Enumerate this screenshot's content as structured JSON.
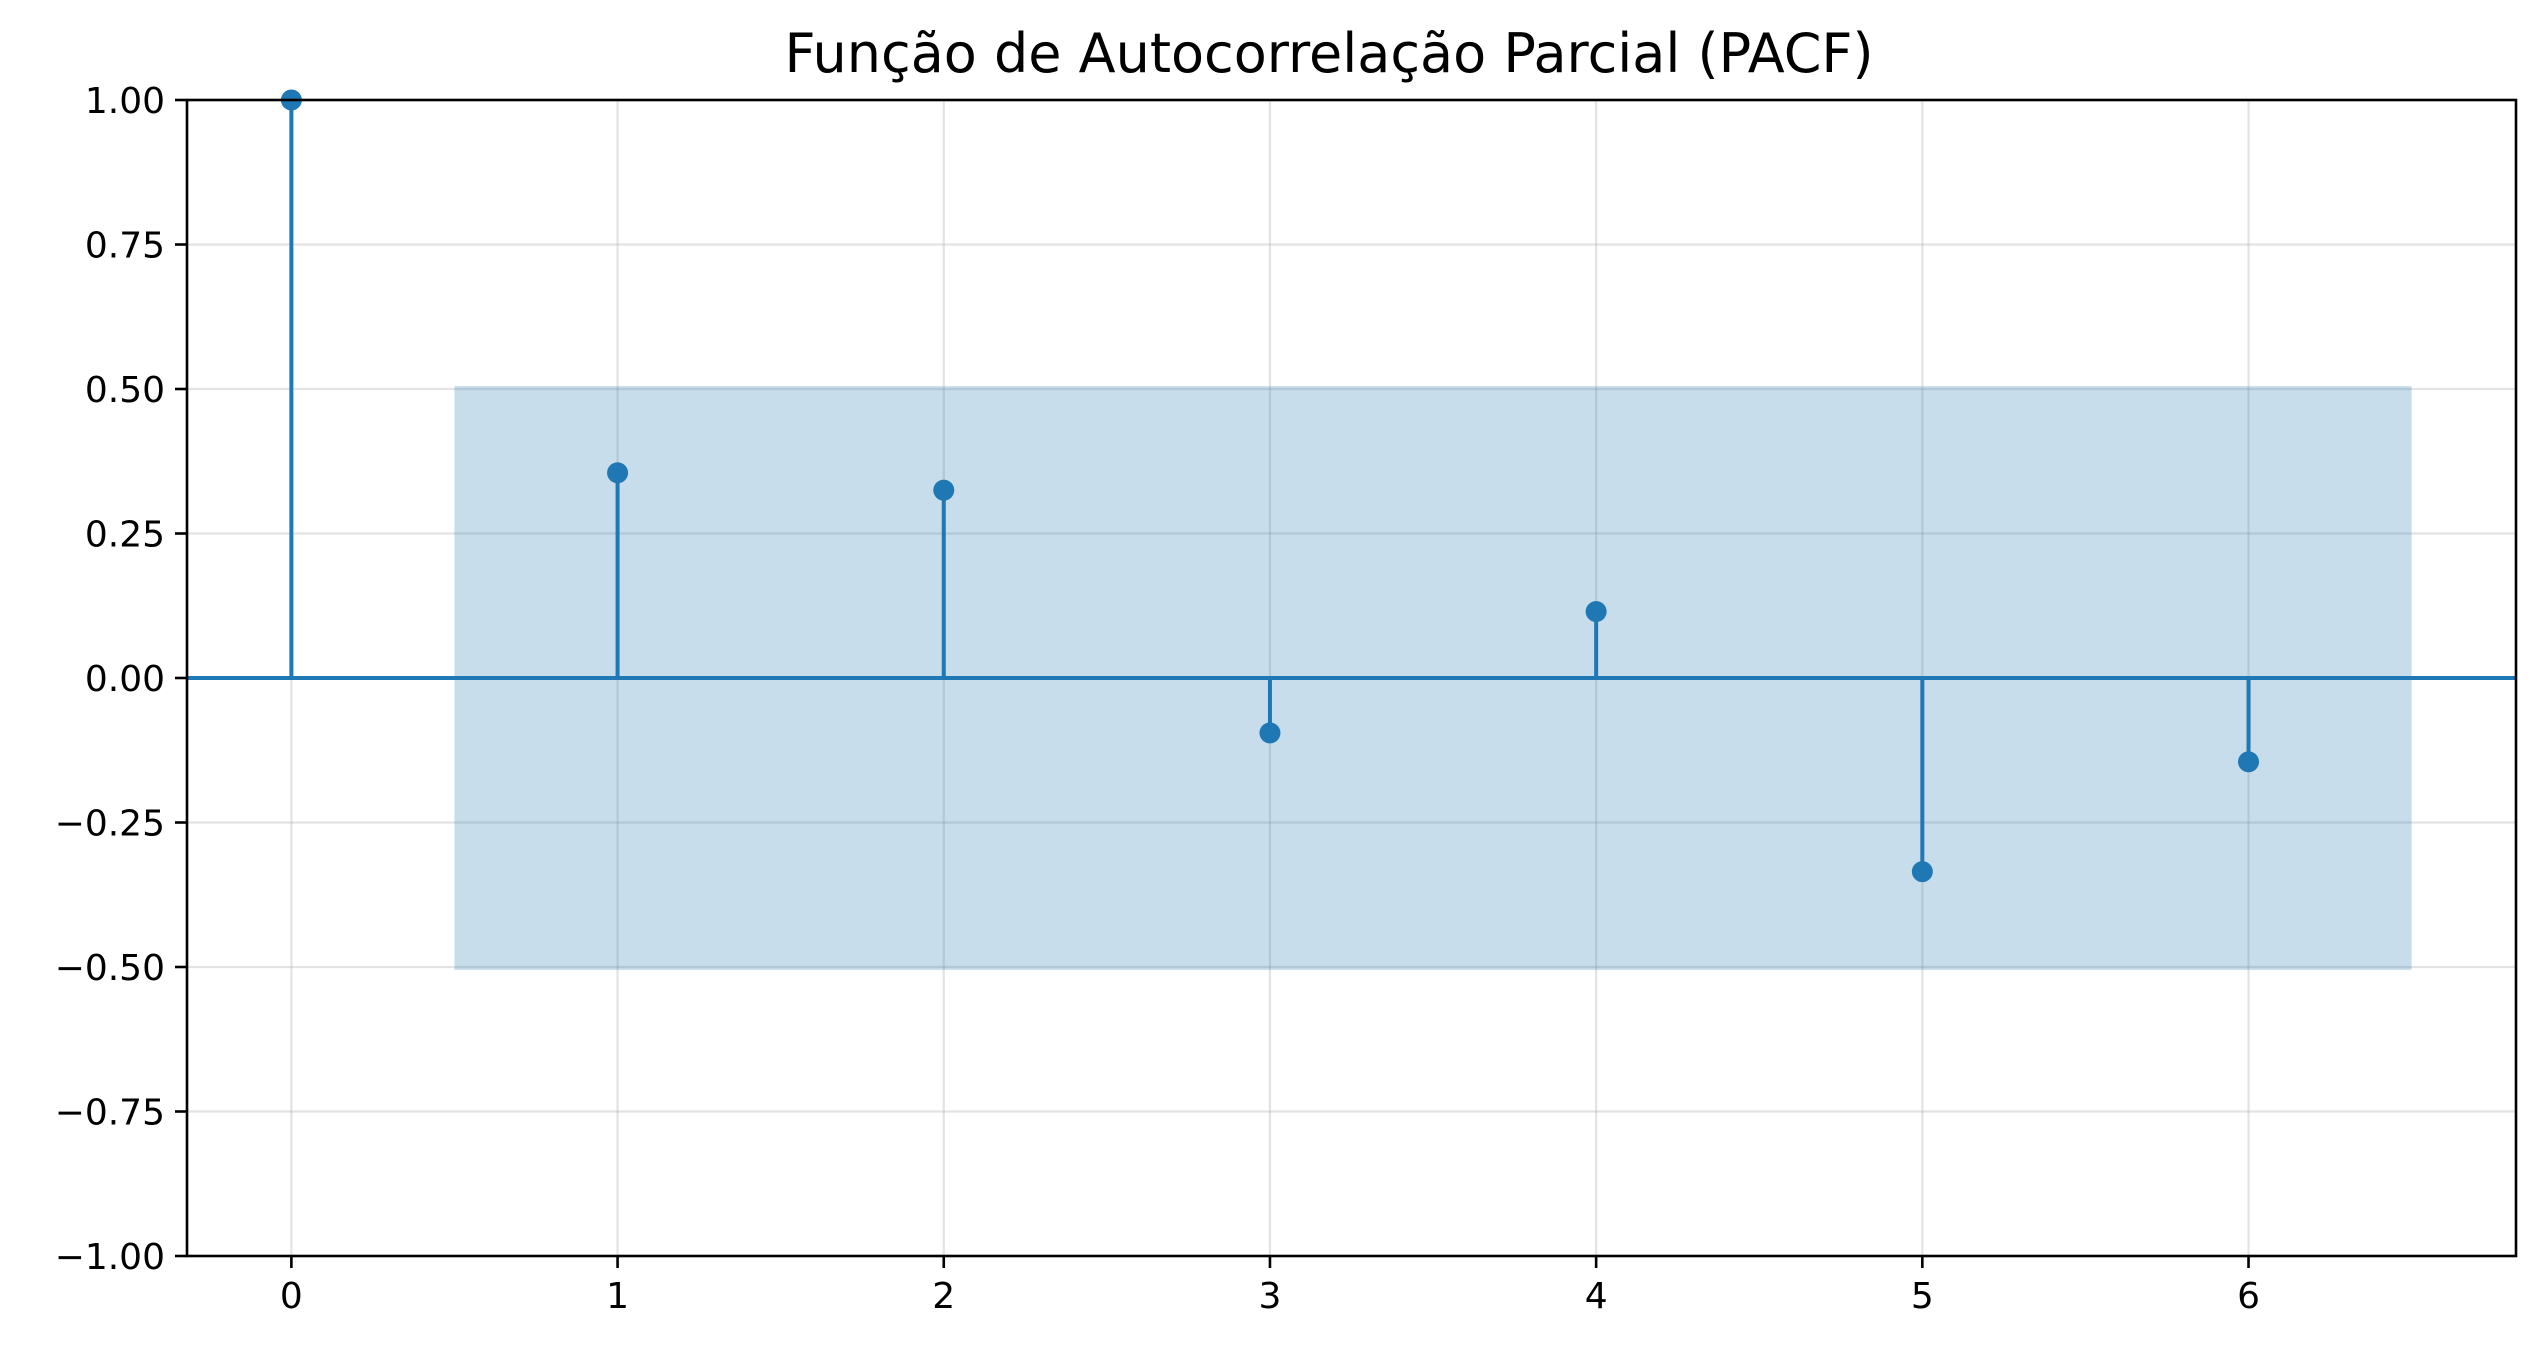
{
  "chart_data": {
    "type": "stem",
    "title": "Função de Autocorrelação Parcial (PACF)",
    "xlabel": "",
    "ylabel": "",
    "x": [
      0,
      1,
      2,
      3,
      4,
      5,
      6
    ],
    "values": [
      1.0,
      0.355,
      0.325,
      -0.095,
      0.115,
      -0.335,
      -0.145
    ],
    "confidence_band": {
      "x_range": [
        0.5,
        6.5
      ],
      "upper": 0.505,
      "lower": -0.505
    },
    "xlim": [
      -0.32,
      6.82
    ],
    "ylim": [
      -1.0,
      1.0
    ],
    "x_ticks": [
      0,
      1,
      2,
      3,
      4,
      5,
      6
    ],
    "x_tick_labels": [
      "0",
      "1",
      "2",
      "3",
      "4",
      "5",
      "6"
    ],
    "y_ticks": [
      1.0,
      0.75,
      0.5,
      0.25,
      0.0,
      -0.25,
      -0.5,
      -0.75,
      -1.0
    ],
    "y_tick_labels": [
      "1.00",
      "0.75",
      "0.50",
      "0.25",
      "0.00",
      "−0.25",
      "−0.50",
      "−0.75",
      "−1.00"
    ],
    "grid": true,
    "colors": {
      "series": "#1f77b4",
      "band": "#1f77b4"
    }
  }
}
